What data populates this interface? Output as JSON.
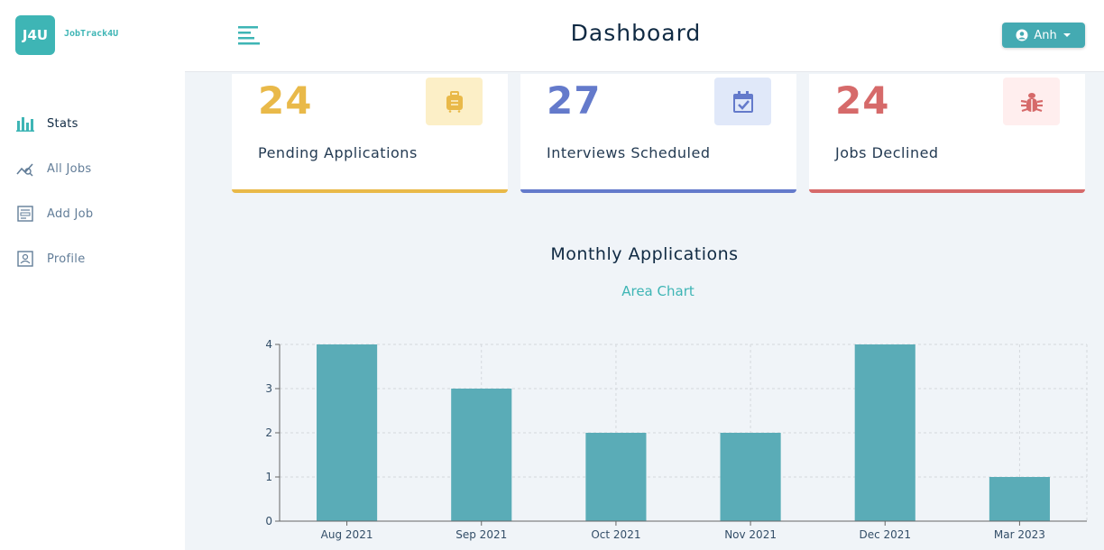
{
  "app": {
    "logo_mark": "J4U",
    "logo_name": "JobTrack4U"
  },
  "sidebar": {
    "items": [
      {
        "label": "Stats",
        "icon": "bar-chart-icon",
        "active": true
      },
      {
        "label": "All Jobs",
        "icon": "chart-line-icon",
        "active": false
      },
      {
        "label": "Add Job",
        "icon": "form-icon",
        "active": false
      },
      {
        "label": "Profile",
        "icon": "profile-icon",
        "active": false
      }
    ]
  },
  "header": {
    "title": "Dashboard",
    "user_label": "Anh"
  },
  "stats": [
    {
      "count": "24",
      "label": "Pending Applications",
      "color": "#e9b949",
      "bg": "#fcefc7",
      "icon": "suitcase-icon"
    },
    {
      "count": "27",
      "label": "Interviews Scheduled",
      "color": "#647acb",
      "bg": "#e0e8f9",
      "icon": "calendar-check-icon"
    },
    {
      "count": "24",
      "label": "Jobs Declined",
      "color": "#d66a6a",
      "bg": "#ffeeee",
      "icon": "bug-icon"
    }
  ],
  "chart": {
    "title": "Monthly Applications",
    "toggle_label": "Area Chart"
  },
  "chart_data": {
    "type": "bar",
    "categories": [
      "Aug 2021",
      "Sep 2021",
      "Oct 2021",
      "Nov 2021",
      "Dec 2021",
      "Mar 2023"
    ],
    "values": [
      4,
      3,
      2,
      2,
      4,
      1
    ],
    "ylim": [
      0,
      4
    ],
    "yticks": [
      0,
      1,
      2,
      3,
      4
    ],
    "grid": true,
    "color": "#5aacb7"
  }
}
